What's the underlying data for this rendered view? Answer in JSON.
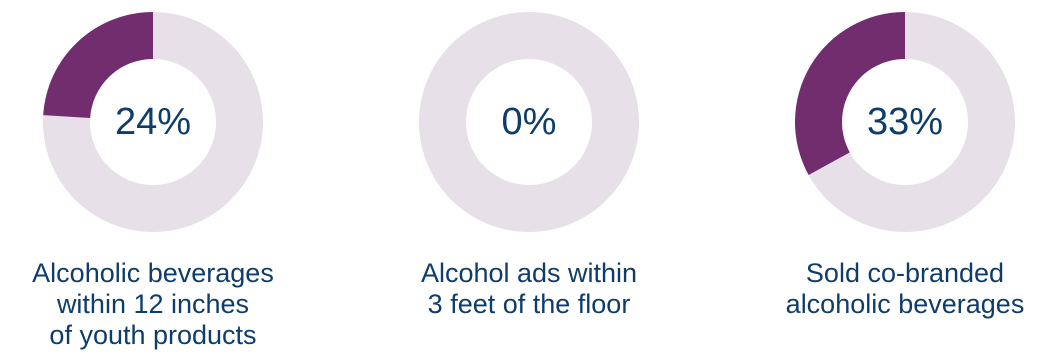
{
  "colors": {
    "accent": "#722d6e",
    "track": "#e7e0e8",
    "text": "#0f3d6b"
  },
  "chart_data": [
    {
      "type": "pie",
      "value_percent": 24,
      "label": "24%",
      "caption_lines": [
        "Alcoholic beverages",
        "within 12 inches",
        " of youth products"
      ]
    },
    {
      "type": "pie",
      "value_percent": 0,
      "label": "0%",
      "caption_lines": [
        "Alcohol ads within",
        "3 feet of the floor"
      ]
    },
    {
      "type": "pie",
      "value_percent": 33,
      "label": "33%",
      "caption_lines": [
        "Sold co-branded",
        "alcoholic beverages"
      ]
    }
  ]
}
